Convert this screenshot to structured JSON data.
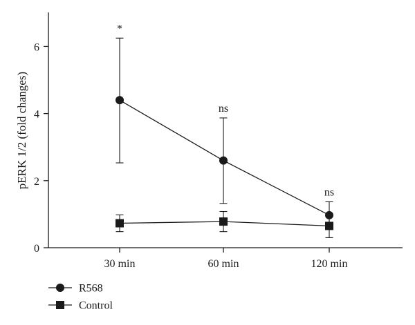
{
  "chart_data": {
    "type": "line",
    "ylabel": "pERK 1/2 (fold changes)",
    "xlabel": "",
    "categories": [
      "30 min",
      "60 min",
      "120 min"
    ],
    "ylim": [
      0,
      7
    ],
    "yticks": [
      0,
      2,
      4,
      6
    ],
    "grid": false,
    "legend_position": "bottom-left",
    "series": [
      {
        "name": "R568",
        "marker": "circle",
        "values": [
          4.4,
          2.6,
          0.97
        ],
        "error_upper": [
          6.25,
          3.87,
          1.37
        ],
        "error_lower": [
          2.53,
          1.32,
          0.6
        ],
        "annotations": [
          "*",
          "ns",
          "ns"
        ]
      },
      {
        "name": "Control",
        "marker": "square",
        "values": [
          0.73,
          0.78,
          0.65
        ],
        "error_upper": [
          0.98,
          1.08,
          0.92
        ],
        "error_lower": [
          0.48,
          0.48,
          0.3
        ]
      }
    ],
    "colors": {
      "line": "#1a1a1a",
      "marker": "#1a1a1a"
    }
  }
}
